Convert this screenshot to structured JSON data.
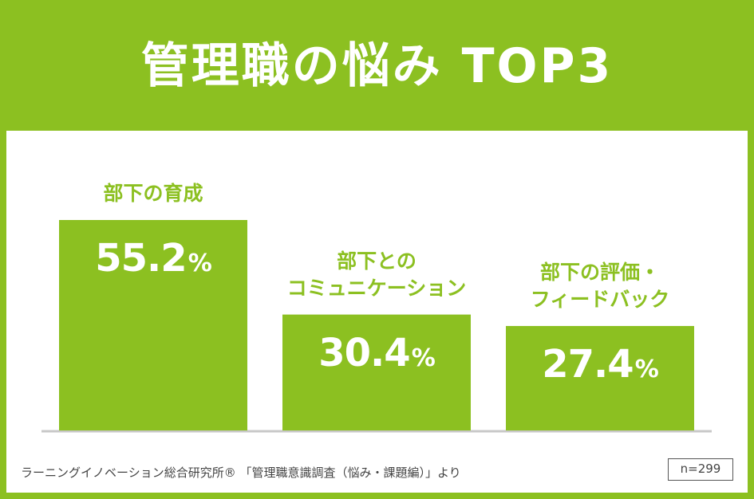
{
  "title": "管理職の悩み TOP3",
  "chart_data": {
    "type": "bar",
    "title": "管理職の悩み TOP3",
    "categories": [
      "部下の育成",
      "部下との\nコミュニケーション",
      "部下の評価・\nフィードバック"
    ],
    "values": [
      55.2,
      30.4,
      27.4
    ],
    "value_labels": [
      "55.2",
      "30.4",
      "27.4"
    ],
    "unit": "%",
    "ylim": [
      0,
      55.2
    ],
    "grid": false,
    "legend": "none"
  },
  "footer": {
    "source": "ラーニングイノベーション総合研究所® 「管理職意識調査（悩み・課題編）」より",
    "sample": "n=299"
  },
  "colors": {
    "background": "#8cc021",
    "bar": "#8cc021",
    "panel": "#ffffff",
    "baseline": "#c8c8c8"
  }
}
